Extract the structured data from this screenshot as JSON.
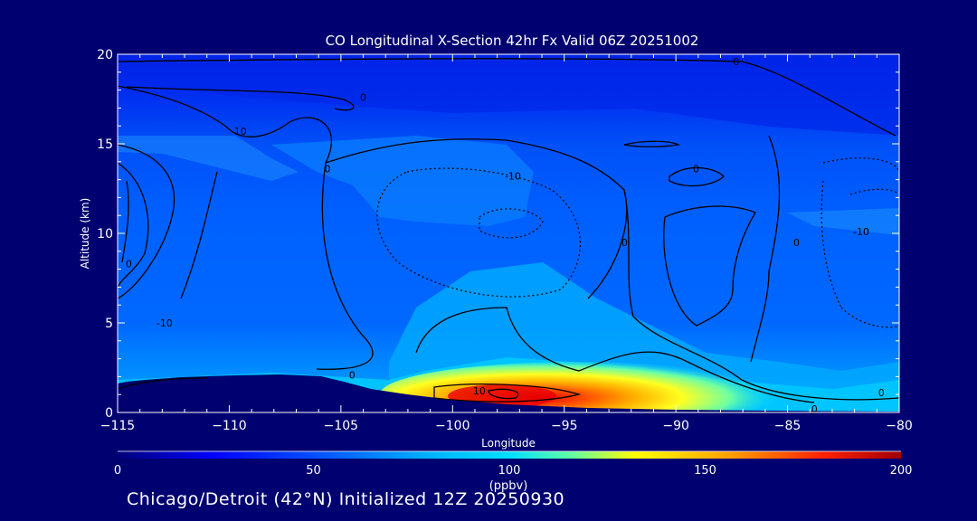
{
  "chart_data": {
    "type": "heatmap",
    "title": "CO Longitudinal X-Section 42hr  Fx Valid 06Z 20251002",
    "xlabel": "Longitude",
    "ylabel": "Altitude (km)",
    "xlim": [
      -115,
      -80
    ],
    "ylim": [
      0,
      20
    ],
    "xticks": [
      -115,
      -110,
      -105,
      -100,
      -95,
      -90,
      -85,
      -80
    ],
    "yticks": [
      0,
      5,
      10,
      15,
      20
    ],
    "colorbar": {
      "label": "(ppbv)",
      "range": [
        0,
        200
      ],
      "ticks": [
        0,
        50,
        100,
        150,
        200
      ],
      "colors": [
        "#00007a",
        "#0000ff",
        "#0060ff",
        "#00b4ff",
        "#00e0ff",
        "#60ffa0",
        "#ffff00",
        "#ffa000",
        "#ff2000",
        "#a00000"
      ]
    },
    "contour_labels": [
      {
        "text": "0",
        "lon": -87.3,
        "alt": 19.6
      },
      {
        "text": "0",
        "lon": -104.0,
        "alt": 17.6
      },
      {
        "text": "10",
        "lon": -109.5,
        "alt": 15.7
      },
      {
        "text": "0",
        "lon": -105.6,
        "alt": 13.6
      },
      {
        "text": "-10",
        "lon": -97.3,
        "alt": 13.2
      },
      {
        "text": "0",
        "lon": -89.1,
        "alt": 13.6
      },
      {
        "text": "0",
        "lon": -92.3,
        "alt": 9.5
      },
      {
        "text": "0",
        "lon": -84.6,
        "alt": 9.5
      },
      {
        "text": "-10",
        "lon": -81.7,
        "alt": 10.1
      },
      {
        "text": "0",
        "lon": -114.5,
        "alt": 8.3
      },
      {
        "text": "-10",
        "lon": -112.9,
        "alt": 5.0
      },
      {
        "text": "0",
        "lon": -104.5,
        "alt": 2.1
      },
      {
        "text": "10",
        "lon": -98.8,
        "alt": 1.2
      },
      {
        "text": "0",
        "lon": -80.8,
        "alt": 1.1
      },
      {
        "text": "0",
        "lon": -83.8,
        "alt": 0.2
      }
    ]
  },
  "footer": "Chicago/Detroit (42°N) Initialized 12Z 20250930"
}
